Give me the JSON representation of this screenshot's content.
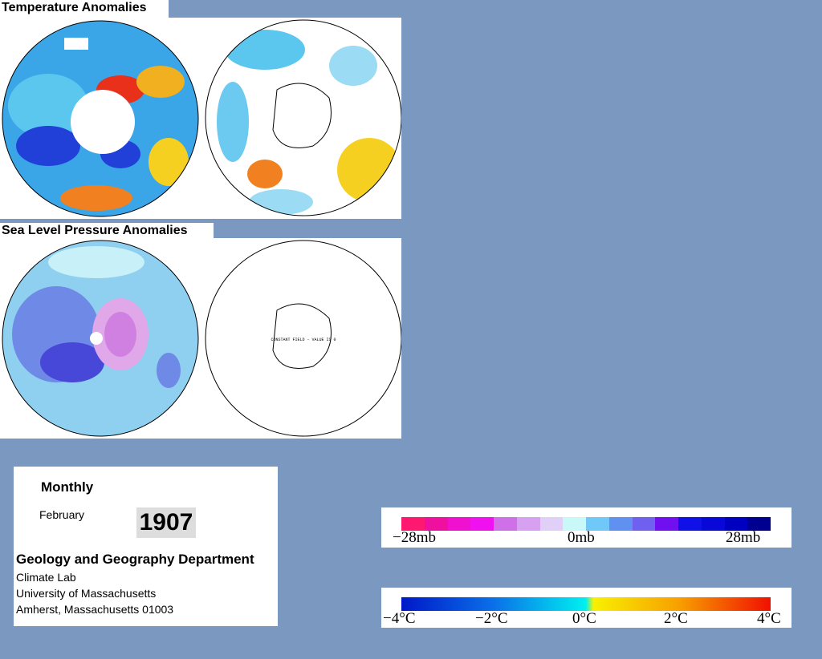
{
  "temperature_title": "Temperature Anomalies",
  "pressure_title": "Sea Level Pressure Anomalies",
  "constant_field_note": "CONSTANT FIELD - VALUE IS 0",
  "info": {
    "period": "Monthly",
    "month": "February",
    "year": "1907",
    "department": "Geology and Geography Department",
    "address": [
      "Climate Lab",
      "University of Massachusetts",
      "Amherst, Massachusetts 01003"
    ]
  },
  "pressure_scale": {
    "labels": [
      "−28mb",
      "0mb",
      "28mb"
    ]
  },
  "temperature_scale": {
    "labels": [
      "−4°C",
      "−2°C",
      "0°C",
      "2°C",
      "4°C"
    ]
  }
}
